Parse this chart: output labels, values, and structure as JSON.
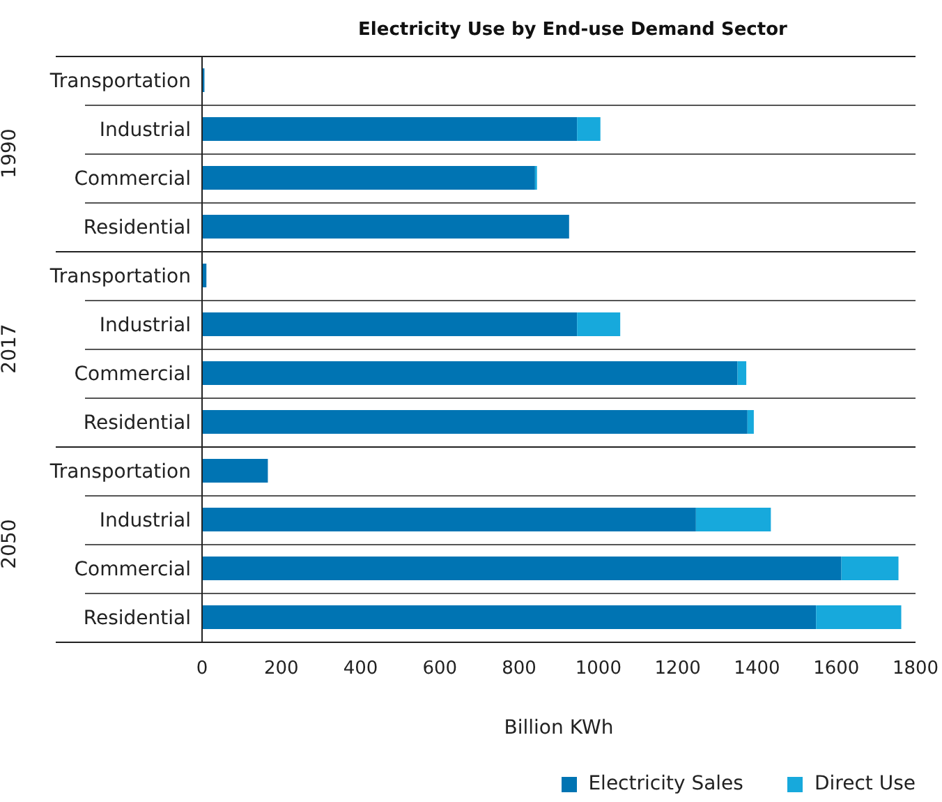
{
  "chart_data": [
    {
      "type": "bar",
      "title": "Electricity Use by End-use Demand Sector",
      "ylabel": "1990",
      "orientation": "horizontal",
      "stacked": true,
      "categories": [
        "Transportation",
        "Industrial",
        "Commercial",
        "Residential"
      ],
      "series": [
        {
          "color": "#0074b3",
          "values": [
            6,
            946,
            840,
            926
          ]
        },
        {
          "color": "#17a9dc",
          "values": [
            0,
            59,
            5,
            0
          ]
        }
      ],
      "xlim": [
        0,
        1800
      ],
      "xticks": [
        0,
        200,
        400,
        600,
        800,
        1000,
        1200,
        1400,
        1600,
        1800
      ],
      "tick_labels": "y",
      "legend": false
    },
    {
      "type": "bar",
      "ylabel": "2017",
      "orientation": "horizontal",
      "stacked": true,
      "categories": [
        "Transportation",
        "Industrial",
        "Commercial",
        "Residential"
      ],
      "series": [
        {
          "color": "#0074b3",
          "values": [
            11,
            946,
            1351,
            1376
          ]
        },
        {
          "color": "#17a9dc",
          "values": [
            0,
            109,
            22,
            16
          ]
        }
      ],
      "xlim": [
        0,
        1800
      ],
      "xticks": [
        0,
        200,
        400,
        600,
        800,
        1000,
        1200,
        1400,
        1600,
        1800
      ],
      "tick_labels": "y",
      "legend": false
    },
    {
      "type": "bar",
      "ylabel": "2050",
      "xlabel": "Billion  KWh",
      "orientation": "horizontal",
      "stacked": true,
      "categories": [
        "Transportation",
        "Industrial",
        "Commercial",
        "Residential"
      ],
      "series": [
        {
          "name": "Electricity Sales",
          "color": "#0074b3",
          "values": [
            166,
            1246,
            1613,
            1549
          ]
        },
        {
          "name": "Direct Use",
          "color": "#17a9dc",
          "values": [
            0,
            189,
            144,
            215
          ]
        }
      ],
      "xlim": [
        0,
        1800
      ],
      "xticks": [
        0,
        200,
        400,
        600,
        800,
        1000,
        1200,
        1400,
        1600,
        1800
      ],
      "legend": "bottom right"
    }
  ]
}
